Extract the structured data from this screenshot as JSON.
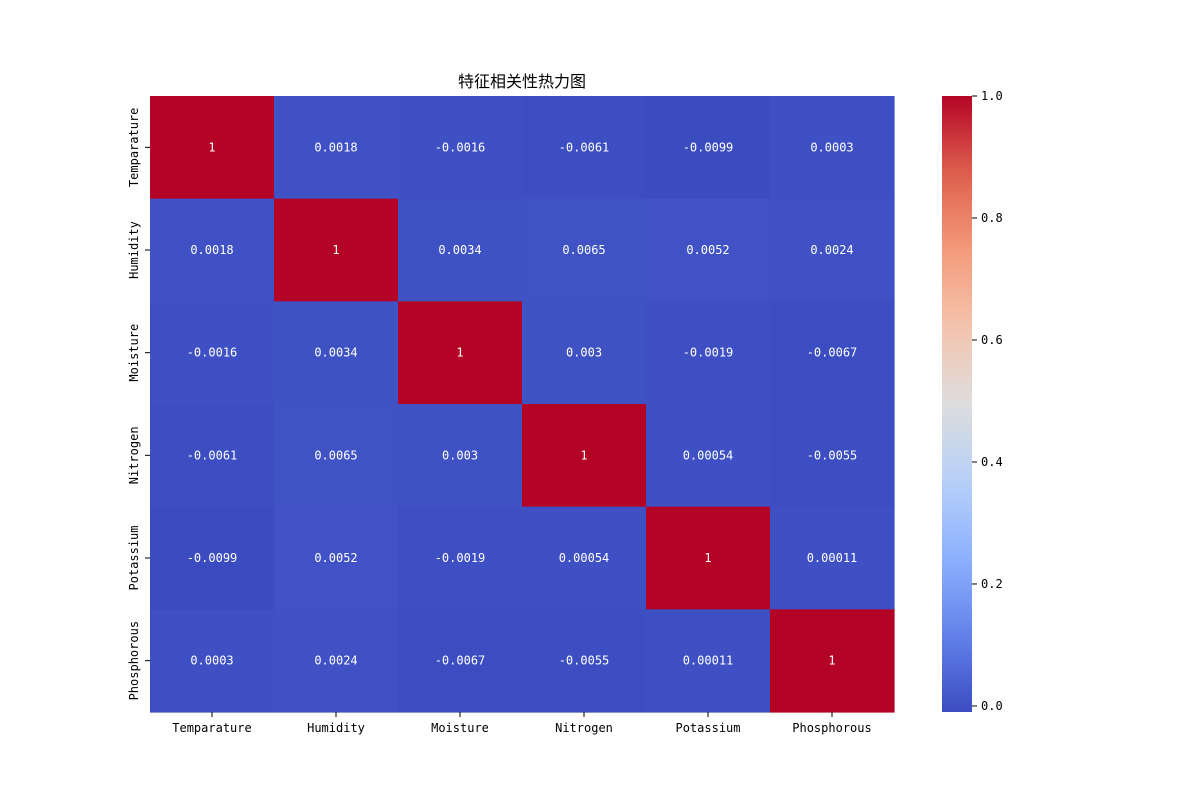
{
  "chart_data": {
    "type": "heatmap",
    "title": "特征相关性热力图",
    "xlabel": "",
    "ylabel": "",
    "x_labels": [
      "Temparature",
      "Humidity",
      "Moisture",
      "Nitrogen",
      "Potassium",
      "Phosphorous"
    ],
    "y_labels": [
      "Temparature",
      "Humidity",
      "Moisture",
      "Nitrogen",
      "Potassium",
      "Phosphorous"
    ],
    "values": [
      [
        1,
        0.0018,
        -0.0016,
        -0.0061,
        -0.0099,
        0.0003
      ],
      [
        0.0018,
        1,
        0.0034,
        0.0065,
        0.0052,
        0.0024
      ],
      [
        -0.0016,
        0.0034,
        1,
        0.003,
        -0.0019,
        -0.0067
      ],
      [
        -0.0061,
        0.0065,
        0.003,
        1,
        0.00054,
        -0.0055
      ],
      [
        -0.0099,
        0.0052,
        -0.0019,
        0.00054,
        1,
        0.00011
      ],
      [
        0.0003,
        0.0024,
        -0.0067,
        -0.0055,
        0.00011,
        1
      ]
    ],
    "annotations": [
      [
        "1",
        "0.0018",
        "-0.0016",
        "-0.0061",
        "-0.0099",
        "0.0003"
      ],
      [
        "0.0018",
        "1",
        "0.0034",
        "0.0065",
        "0.0052",
        "0.0024"
      ],
      [
        "-0.0016",
        "0.0034",
        "1",
        "0.003",
        "-0.0019",
        "-0.0067"
      ],
      [
        "-0.0061",
        "0.0065",
        "0.003",
        "1",
        "0.00054",
        "-0.0055"
      ],
      [
        "-0.0099",
        "0.0052",
        "-0.0019",
        "0.00054",
        "1",
        "0.00011"
      ],
      [
        "0.0003",
        "0.0024",
        "-0.0067",
        "-0.0055",
        "0.00011",
        "1"
      ]
    ],
    "colormap": "coolwarm",
    "colorbar_range": [
      -0.0099,
      1
    ],
    "colorbar_ticks": [
      0,
      0.2,
      0.4,
      0.6,
      0.8,
      1
    ],
    "colorbar_tick_labels": [
      "0.0",
      "0.2",
      "0.4",
      "0.6",
      "0.8",
      "1.0"
    ],
    "grid": false,
    "legend": "colorbar-right"
  }
}
